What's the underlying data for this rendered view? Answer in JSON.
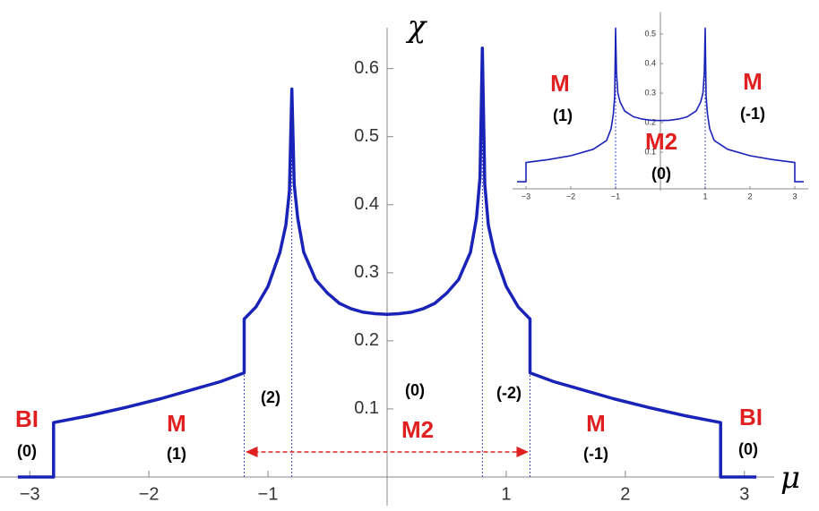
{
  "chart_data": [
    {
      "type": "line",
      "color": "#1a23b8",
      "x": [
        -3.1,
        -2.8,
        -2.8,
        -2.5,
        -2.2,
        -1.9,
        -1.6,
        -1.4,
        -1.2,
        -1.2,
        -1.1,
        -1.0,
        -0.9,
        -0.85,
        -0.82,
        -0.8,
        -0.78,
        -0.75,
        -0.7,
        -0.6,
        -0.5,
        -0.4,
        -0.3,
        -0.2,
        -0.1,
        0,
        0.1,
        0.2,
        0.3,
        0.4,
        0.5,
        0.6,
        0.7,
        0.75,
        0.78,
        0.8,
        0.82,
        0.85,
        0.9,
        1.0,
        1.1,
        1.2,
        1.2,
        1.4,
        1.6,
        1.9,
        2.2,
        2.5,
        2.8,
        2.8,
        3.1
      ],
      "values": [
        0,
        0,
        0.08,
        0.09,
        0.102,
        0.115,
        0.13,
        0.14,
        0.153,
        0.232,
        0.25,
        0.28,
        0.33,
        0.37,
        0.42,
        0.57,
        0.43,
        0.38,
        0.33,
        0.29,
        0.27,
        0.255,
        0.247,
        0.242,
        0.24,
        0.239,
        0.24,
        0.242,
        0.247,
        0.255,
        0.27,
        0.29,
        0.33,
        0.38,
        0.44,
        0.63,
        0.43,
        0.37,
        0.33,
        0.28,
        0.25,
        0.232,
        0.153,
        0.14,
        0.13,
        0.115,
        0.102,
        0.09,
        0.08,
        0,
        0
      ],
      "xlim": [
        -3.25,
        3.25
      ],
      "ylim": [
        0,
        0.66
      ],
      "xticks": [
        {
          "value": -3,
          "label": "−3"
        },
        {
          "value": -2,
          "label": "−2"
        },
        {
          "value": -1,
          "label": "−1"
        },
        1,
        2,
        3
      ],
      "yticks": [
        0.1,
        0.2,
        0.3,
        0.4,
        0.5,
        0.6
      ],
      "xlabel": "μ",
      "ylabel": "χ",
      "vlines": [
        -1.2,
        -0.8,
        0.8,
        1.2
      ],
      "arrow": [
        -1.2,
        1.2
      ],
      "annotations": [
        "BI",
        "(0)",
        "M",
        "(1)",
        "(2)",
        "(0)",
        "M2",
        "(-2)",
        "M",
        "(-1)",
        "BI",
        "(0)"
      ]
    },
    {
      "type": "line",
      "color": "#1a23b8",
      "x": [
        -3.2,
        -3,
        -3,
        -2.5,
        -2,
        -1.5,
        -1.2,
        -1.1,
        -1.05,
        -1.02,
        -1,
        -0.98,
        -0.95,
        -0.9,
        -0.8,
        -0.6,
        -0.4,
        -0.2,
        0,
        0.2,
        0.4,
        0.6,
        0.8,
        0.9,
        0.95,
        0.98,
        1,
        1.02,
        1.05,
        1.1,
        1.2,
        1.5,
        2,
        2.5,
        3,
        3,
        3.2
      ],
      "values": [
        0,
        0,
        0.065,
        0.075,
        0.088,
        0.11,
        0.14,
        0.18,
        0.23,
        0.29,
        0.52,
        0.37,
        0.3,
        0.27,
        0.24,
        0.22,
        0.212,
        0.208,
        0.207,
        0.208,
        0.212,
        0.22,
        0.24,
        0.27,
        0.3,
        0.37,
        0.52,
        0.29,
        0.23,
        0.18,
        0.14,
        0.11,
        0.088,
        0.075,
        0.065,
        0,
        0
      ],
      "xlim": [
        -3.3,
        3.3
      ],
      "ylim": [
        -0.03,
        0.55
      ],
      "xticks": [
        {
          "value": -3,
          "label": "−3"
        },
        {
          "value": -2,
          "label": "−2"
        },
        {
          "value": -1,
          "label": "−1"
        },
        1,
        2,
        3
      ],
      "yticks": [
        0.1,
        0.2,
        0.3,
        0.4,
        0.5
      ],
      "vlines": [
        -1,
        1
      ],
      "annotations": [
        "M",
        "(1)",
        "M2",
        "(0)",
        "M",
        "(-1)"
      ]
    }
  ]
}
